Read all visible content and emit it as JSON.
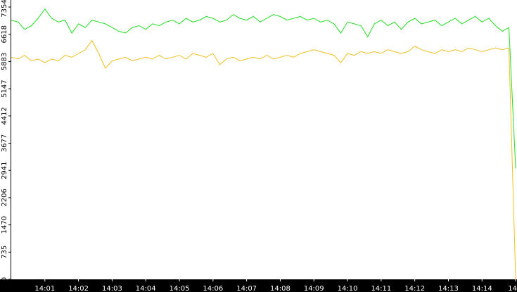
{
  "chart_data": {
    "type": "line",
    "x": [
      0,
      0.2,
      0.4,
      0.6,
      0.8,
      1,
      1.2,
      1.4,
      1.6,
      1.8,
      2,
      2.2,
      2.4,
      2.6,
      2.8,
      3,
      3.2,
      3.4,
      3.6,
      3.8,
      4,
      4.2,
      4.4,
      4.6,
      4.8,
      5,
      5.2,
      5.4,
      5.6,
      5.8,
      6,
      6.2,
      6.4,
      6.6,
      6.8,
      7,
      7.2,
      7.4,
      7.6,
      7.8,
      8,
      8.2,
      8.4,
      8.6,
      8.8,
      9,
      9.2,
      9.4,
      9.6,
      9.8,
      10,
      10.2,
      10.4,
      10.6,
      10.8,
      11,
      11.2,
      11.4,
      11.6,
      11.8,
      12,
      12.2,
      12.4,
      12.6,
      12.8,
      13,
      13.2,
      13.4,
      13.6,
      13.8,
      14,
      14.2,
      14.4,
      14.6,
      14.8,
      15
    ],
    "series": [
      {
        "color": "#22dd22",
        "values": [
          7000,
          6950,
          6750,
          6850,
          7050,
          7300,
          7050,
          6950,
          7000,
          6650,
          6900,
          6800,
          7000,
          6950,
          6900,
          6800,
          6700,
          6650,
          6800,
          6850,
          6750,
          6900,
          6850,
          6950,
          7000,
          6900,
          7050,
          6950,
          7000,
          7100,
          7050,
          6950,
          7000,
          7150,
          7050,
          7000,
          7100,
          6950,
          7050,
          7150,
          7100,
          7000,
          7050,
          7100,
          7000,
          7050,
          6950,
          7000,
          6900,
          6650,
          6950,
          6900,
          6850,
          6550,
          6900,
          7000,
          6850,
          6950,
          6750,
          6950,
          7050,
          6900,
          6950,
          7000,
          6850,
          6950,
          7050,
          6900,
          7000,
          7100,
          6950,
          7050,
          6850,
          6700,
          6800,
          3000
        ]
      },
      {
        "color": "#f0c020",
        "values": [
          6000,
          5950,
          6050,
          5900,
          5950,
          5850,
          5950,
          5900,
          6050,
          6000,
          6100,
          6200,
          6450,
          6100,
          5700,
          5900,
          5950,
          6000,
          5900,
          5950,
          6000,
          5950,
          6050,
          5950,
          6000,
          6050,
          5950,
          6100,
          6050,
          6000,
          6100,
          5800,
          5950,
          6000,
          5900,
          5950,
          6000,
          5950,
          6050,
          5950,
          6000,
          6050,
          6000,
          6100,
          6150,
          6200,
          6150,
          6100,
          6050,
          5850,
          6100,
          6050,
          6150,
          6100,
          6150,
          6100,
          6200,
          6150,
          6100,
          6150,
          6300,
          6200,
          6150,
          6100,
          6200,
          6150,
          6200,
          6150,
          6250,
          6200,
          6150,
          6200,
          6250,
          6200,
          6250,
          0
        ]
      }
    ],
    "xlim": [
      0,
      15.04
    ],
    "ylim": [
      0,
      7354
    ],
    "yticks": [
      0,
      735,
      1470,
      2206,
      2941,
      3677,
      4412,
      5147,
      5883,
      6618,
      7354
    ],
    "xticks": [
      {
        "value": 1,
        "label": "14:01"
      },
      {
        "value": 2,
        "label": "14:02"
      },
      {
        "value": 3,
        "label": "14:03"
      },
      {
        "value": 4,
        "label": "14:04"
      },
      {
        "value": 5,
        "label": "14:05"
      },
      {
        "value": 6,
        "label": "14:06"
      },
      {
        "value": 7,
        "label": "14:07"
      },
      {
        "value": 8,
        "label": "14:08"
      },
      {
        "value": 9,
        "label": "14:09"
      },
      {
        "value": 10,
        "label": "14:10"
      },
      {
        "value": 11,
        "label": "14:11"
      },
      {
        "value": 12,
        "label": "14:12"
      },
      {
        "value": 13,
        "label": "14:13"
      },
      {
        "value": 14,
        "label": "14:14"
      },
      {
        "value": 15,
        "label": "14"
      }
    ]
  }
}
